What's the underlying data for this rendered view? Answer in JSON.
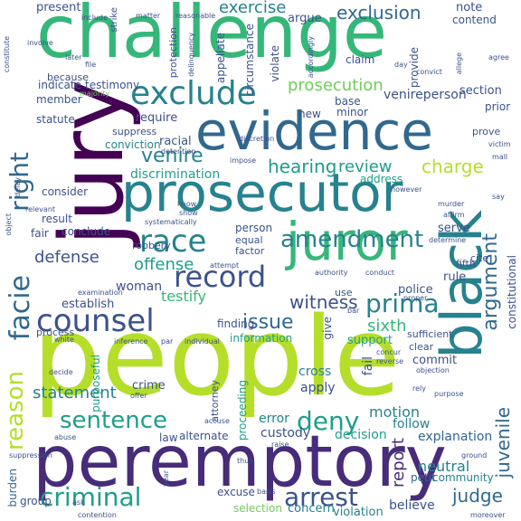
{
  "palette": {
    "dark_purple": "#440154",
    "indigo": "#472c7a",
    "slate_blue": "#3b528b",
    "steel_blue": "#31688e",
    "teal_blue": "#26828e",
    "teal": "#1f9e89",
    "green": "#35b779",
    "light_green": "#6ece58",
    "yellow_green": "#b5de2b",
    "yellow": "#fde725"
  },
  "words": {
    "challenge": "challenge",
    "people": "people",
    "peremptory": "peremptory",
    "jury": "jury",
    "evidence": "evidence",
    "prosecutor": "prosecutor",
    "juror": "juror",
    "black": "black",
    "exclude": "exclude",
    "counsel": "counsel",
    "record": "record",
    "race": "race",
    "venire": "venire",
    "facie": "facie",
    "right": "right",
    "amendment": "amendment",
    "prima": "prima",
    "reason": "reason",
    "sentence": "sentence",
    "deny": "deny",
    "criminal": "criminal",
    "arrest": "arrest",
    "exclusion": "exclusion",
    "prosecution": "prosecution",
    "hearing": "hearing",
    "review": "review",
    "charge": "charge",
    "exercise": "exercise",
    "argument": "argument",
    "issue": "issue",
    "witness": "witness",
    "judge": "judge",
    "juvenile": "juvenile",
    "defense": "defense",
    "offense": "offense",
    "sixth": "sixth",
    "statement": "statement",
    "discrimination": "discrimination",
    "venireperson": "venireperson",
    "motion": "motion",
    "error": "error",
    "custody": "custody",
    "decision": "decision",
    "follow": "follow",
    "explanation": "explanation",
    "neutral": "neutral",
    "community": "community",
    "report": "report",
    "believe": "believe",
    "violation": "violation",
    "concern": "concern",
    "selection": "selection",
    "excuse": "excuse",
    "burden": "burden",
    "group": "group",
    "petit": "petit",
    "woman": "woman",
    "establish": "establish",
    "testify": "testify",
    "present": "present",
    "indicate": "indicate",
    "testimony": "testimony",
    "member": "member",
    "because": "because",
    "statute": "statute",
    "require": "require",
    "conviction": "conviction",
    "racial": "racial",
    "consider": "consider",
    "result": "result",
    "conclude": "conclude",
    "fair": "fair",
    "crime": "crime",
    "purposeful": "purposeful",
    "proceeding": "proceeding",
    "cross": "cross",
    "apply": "apply",
    "fail": "fail",
    "support": "support",
    "information": "information",
    "finding": "finding",
    "commit": "commit",
    "police": "police",
    "constitutional": "constitutional",
    "rule": "rule",
    "serve": "serve",
    "person": "person",
    "address": "address",
    "note": "note",
    "contend": "contend",
    "argue": "argue",
    "claim": "claim",
    "section": "section",
    "prior": "prior",
    "base": "base",
    "minor": "minor",
    "new": "new",
    "protection": "protection",
    "circumstance": "circumstance",
    "appellate": "appellate",
    "violate": "violate",
    "provide": "provide",
    "suppress": "suppress",
    "prove": "prove",
    "process": "process",
    "alternate": "alternate",
    "law": "law",
    "attorney": "attorney",
    "give": "give",
    "cite": "cite",
    "fifth": "fifth",
    "sufficient": "sufficient",
    "clear": "clear",
    "robbery": "robbery",
    "equal": "equal",
    "factor": "factor",
    "use": "use",
    "strike": "strike",
    "include": "include",
    "matter": "matter",
    "reasonable": "reasonable",
    "agree": "agree",
    "allege": "allege",
    "delinquency": "delinquency",
    "accordingly": "accordingly",
    "involve": "involve",
    "later": "later",
    "file": "file",
    "day": "day",
    "convict": "convict",
    "majority": "majority",
    "discretion": "discretion",
    "detention": "detention",
    "impose": "impose",
    "know": "know",
    "show": "show",
    "systematically": "systematically",
    "however": "however",
    "murder": "murder",
    "affirm": "affirm",
    "determine": "determine",
    "victim": "victim",
    "say": "say",
    "authority": "authority",
    "conduct": "conduct",
    "proper": "proper",
    "bar": "bar",
    "individual": "individual",
    "par": "par",
    "inference": "inference",
    "white": "white",
    "decide": "decide",
    "offer": "offer",
    "examination": "examination",
    "abuse": "abuse",
    "suppression": "suppression",
    "year": "year",
    "ask": "ask",
    "contention": "contention",
    "raise": "raise",
    "thus": "thus",
    "basis": "basis",
    "accuse": "accuse",
    "moreover": "moreover",
    "ground": "ground",
    "concur": "concur",
    "reverse": "reverse",
    "objection": "objection",
    "purpose": "purpose",
    "object": "object",
    "relevant": "relevant",
    "attempt": "attempt",
    "rely": "rely",
    "mall": "mall",
    "constitute": "constitute",
    "delay": "delay"
  }
}
